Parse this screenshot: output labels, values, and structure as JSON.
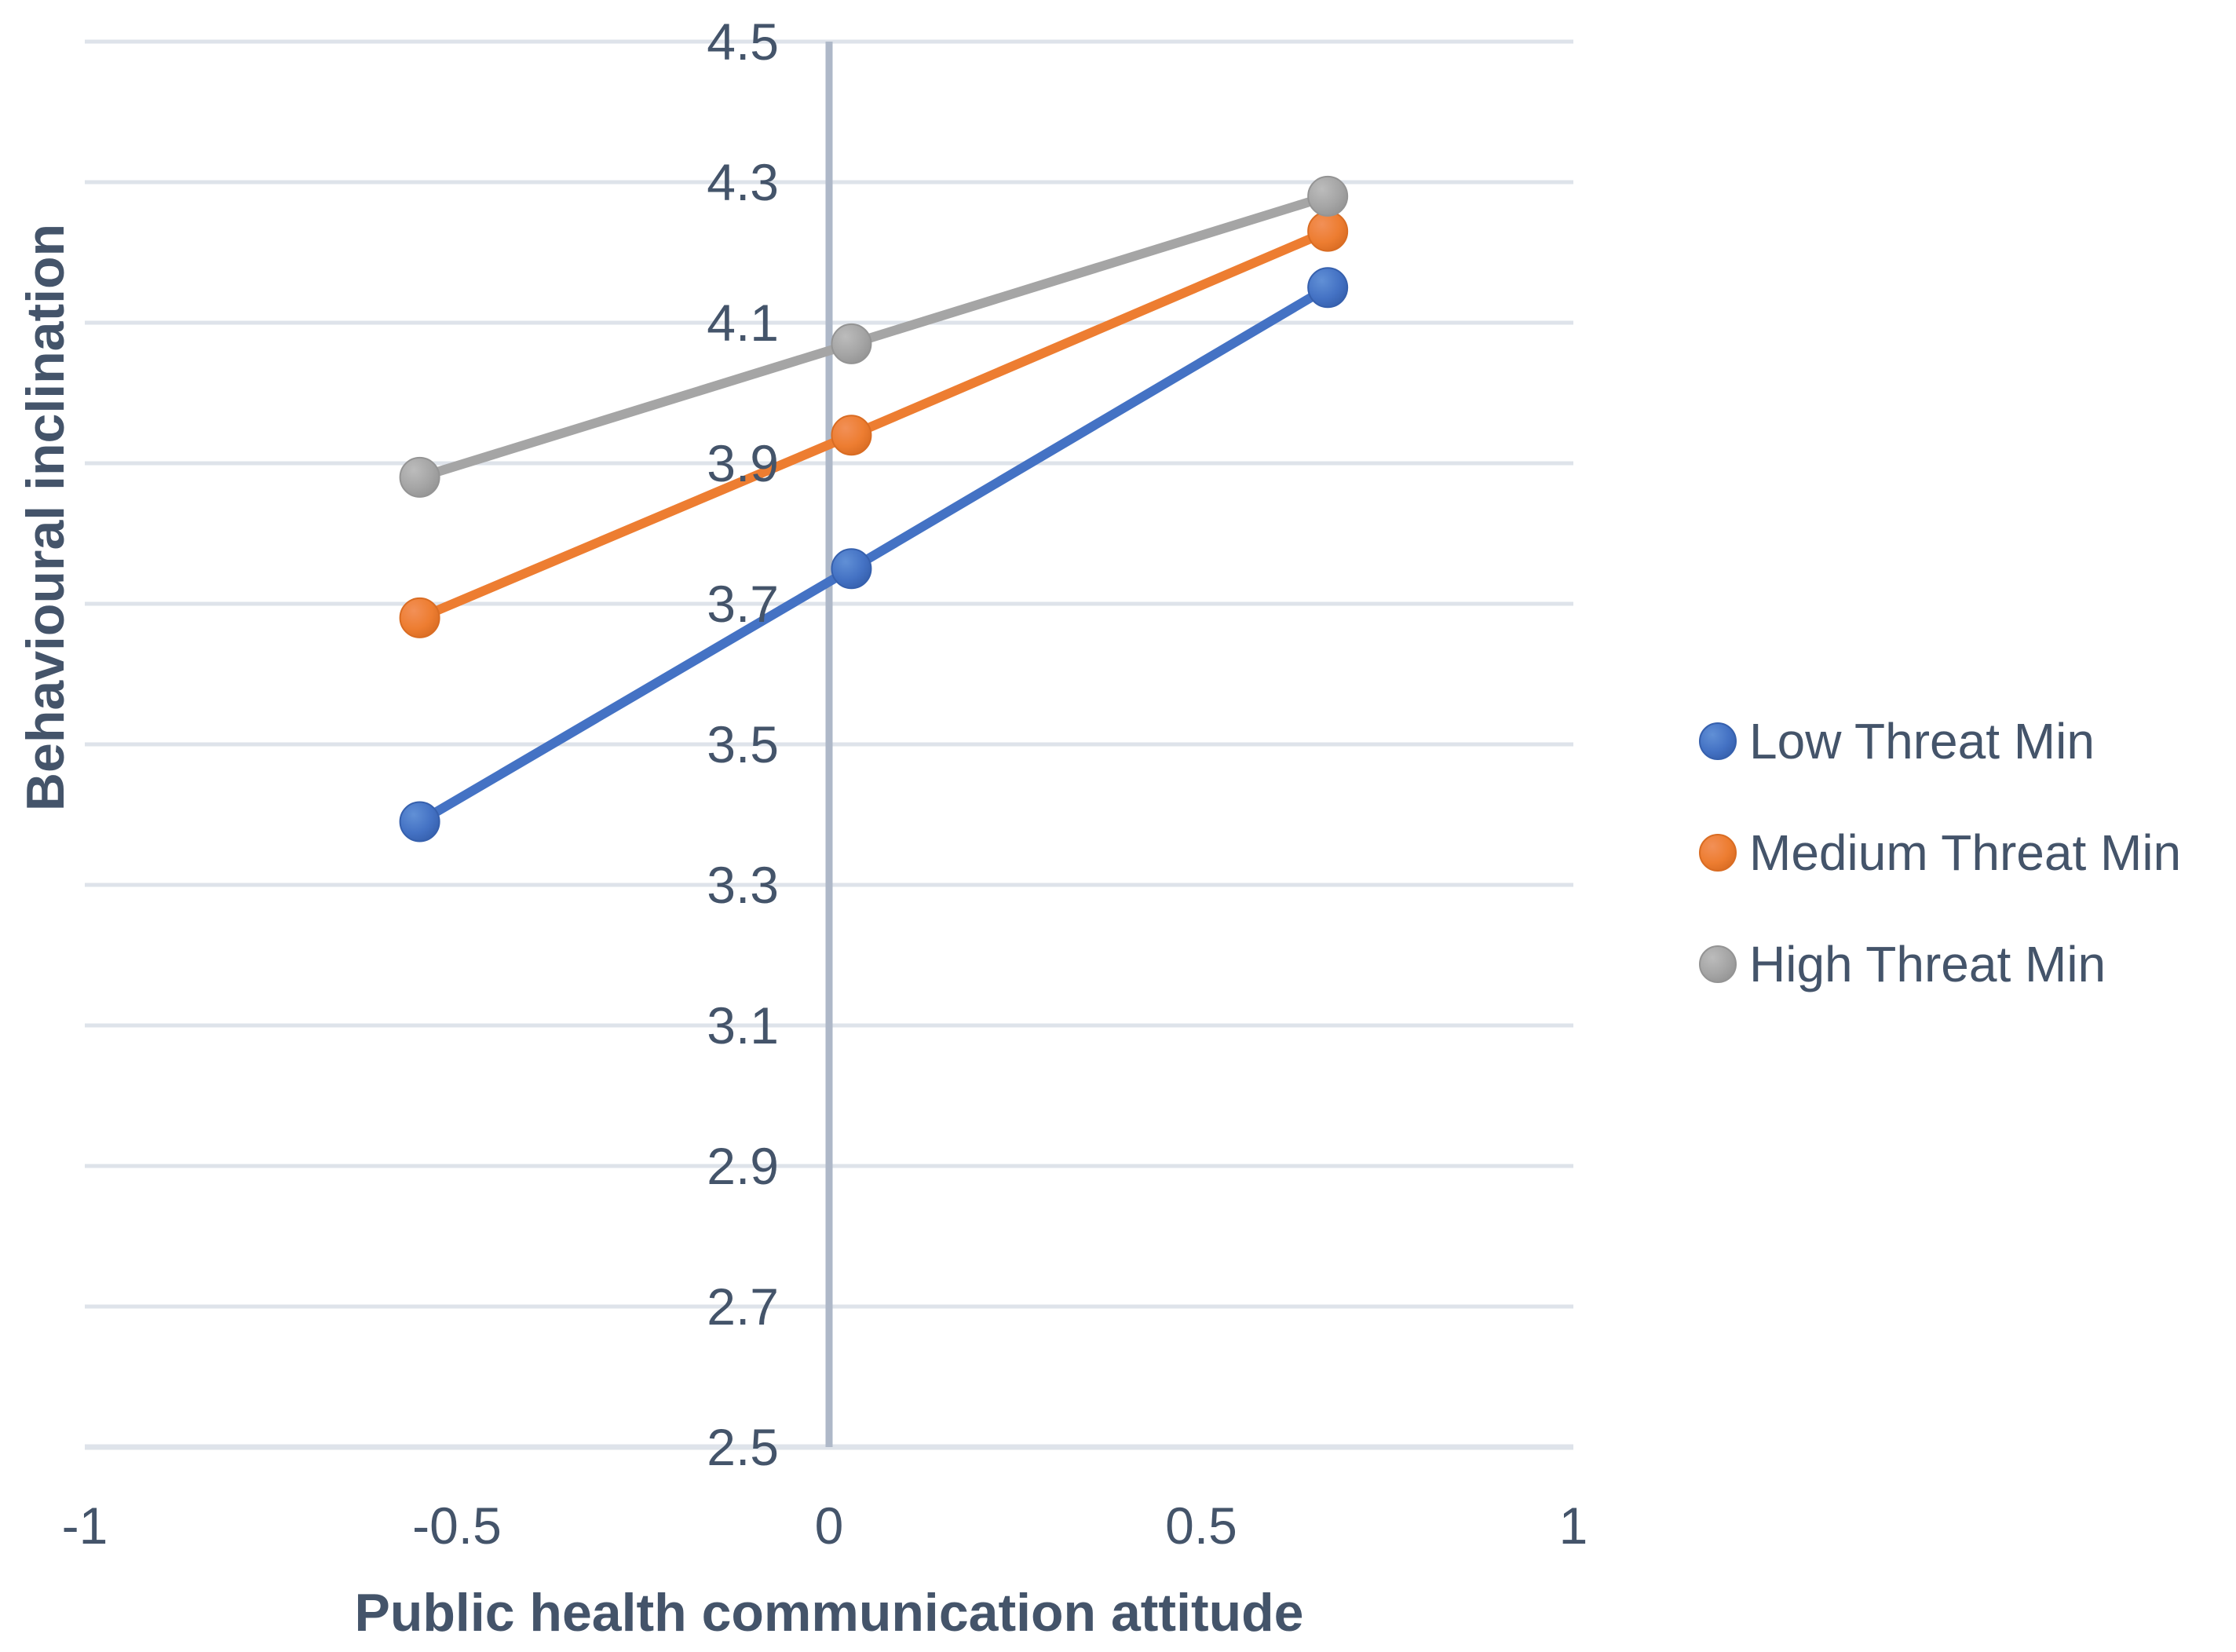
{
  "chart_data": {
    "type": "line",
    "x": [
      -0.55,
      0.03,
      0.67
    ],
    "series": [
      {
        "name": "Low Threat Min",
        "color": "#4472C4",
        "color_light": "#6190D6",
        "color_dark": "#3660AD",
        "values": [
          3.39,
          3.75,
          4.15
        ]
      },
      {
        "name": "Medium Threat Min",
        "color": "#ED7D31",
        "color_light": "#F29057",
        "color_dark": "#D96C23",
        "values": [
          3.68,
          3.94,
          4.23
        ]
      },
      {
        "name": "High Threat Min",
        "color": "#A5A5A5",
        "color_light": "#BCBCBC",
        "color_dark": "#949494",
        "values": [
          3.88,
          4.07,
          4.28
        ]
      }
    ],
    "xlabel": "Public health communication attitude",
    "ylabel": "Behavioural inclination",
    "xlim": [
      -1,
      1
    ],
    "ylim": [
      2.5,
      4.5
    ],
    "x_ticks": [
      {
        "value": -1,
        "label": "-1"
      },
      {
        "value": -0.5,
        "label": "-0.5"
      },
      {
        "value": 0,
        "label": "0"
      },
      {
        "value": 0.5,
        "label": "0.5"
      },
      {
        "value": 1,
        "label": "1"
      }
    ],
    "y_tick_step": 0.2,
    "y_tick_labels": [
      "2.5",
      "2.7",
      "2.9",
      "3.1",
      "3.3",
      "3.5",
      "3.7",
      "3.9",
      "4.1",
      "4.3",
      "4.5"
    ],
    "grid": "horizontal",
    "value_axis_cross_x": 0,
    "legend_position": "right"
  },
  "colors": {
    "text": "#44546A",
    "gridline": "#DEE3EA",
    "axis_line": "#AEB8C8",
    "background": "#FFFFFF"
  }
}
